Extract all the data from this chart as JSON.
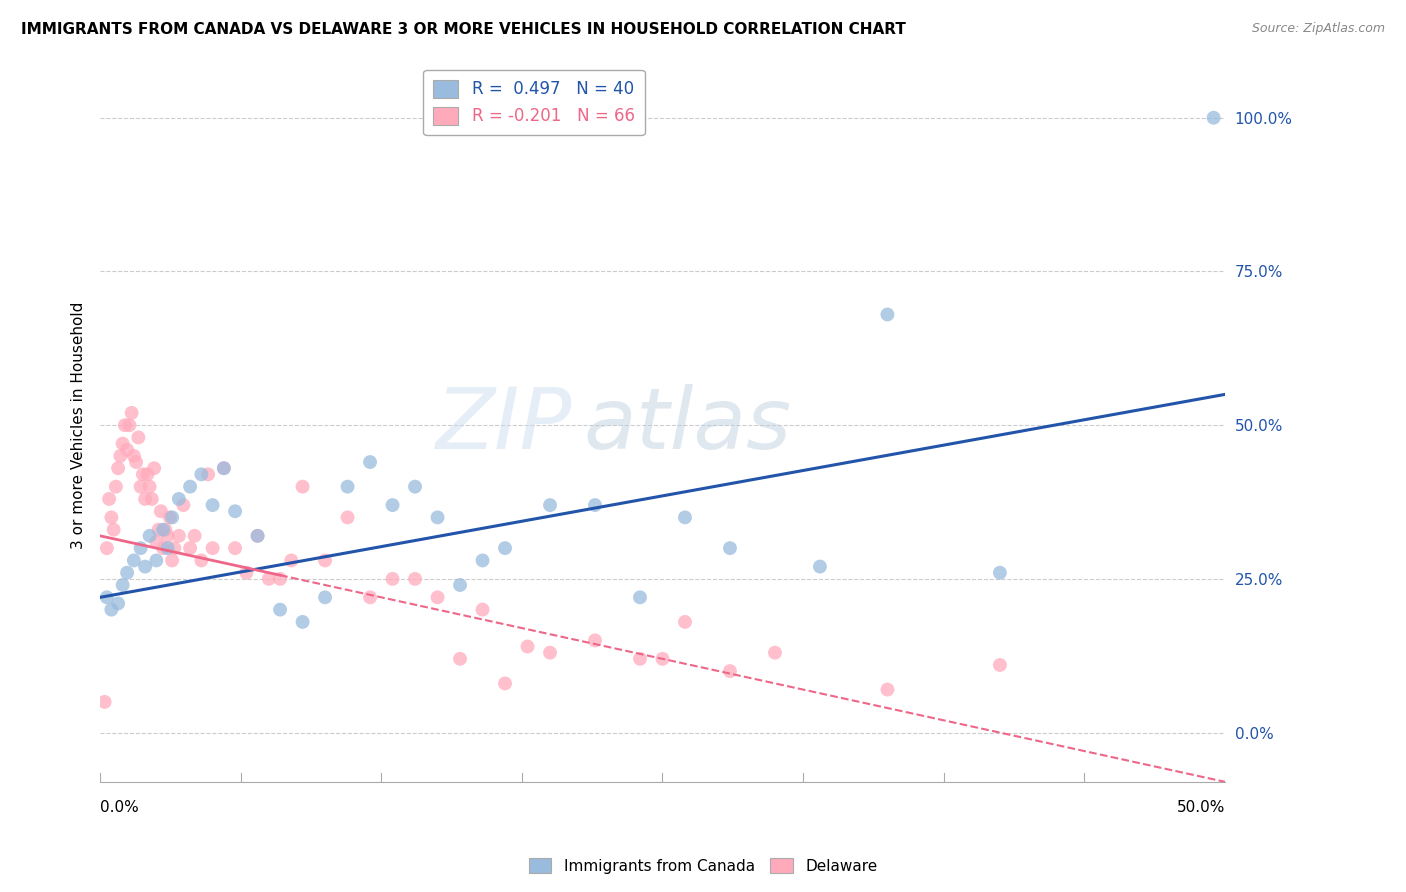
{
  "title": "IMMIGRANTS FROM CANADA VS DELAWARE 3 OR MORE VEHICLES IN HOUSEHOLD CORRELATION CHART",
  "source": "Source: ZipAtlas.com",
  "ylabel": "3 or more Vehicles in Household",
  "ytick_values": [
    0,
    25,
    50,
    75,
    100
  ],
  "xlim": [
    0,
    50
  ],
  "ylim": [
    -8,
    108
  ],
  "color_canada": "#99BBDD",
  "color_delaware": "#FFAABB",
  "trendline_canada_color": "#2255AA",
  "trendline_delaware_color": "#EE6688",
  "watermark_zip": "ZIP",
  "watermark_atlas": "atlas",
  "canada_scatter_x": [
    0.3,
    0.5,
    0.8,
    1.0,
    1.2,
    1.5,
    1.8,
    2.0,
    2.2,
    2.5,
    2.8,
    3.0,
    3.2,
    3.5,
    4.0,
    4.5,
    5.0,
    5.5,
    6.0,
    7.0,
    8.0,
    9.0,
    10.0,
    11.0,
    12.0,
    13.0,
    14.0,
    15.0,
    16.0,
    17.0,
    18.0,
    20.0,
    22.0,
    24.0,
    26.0,
    28.0,
    32.0,
    35.0,
    40.0,
    49.5
  ],
  "canada_scatter_y": [
    22,
    20,
    21,
    24,
    26,
    28,
    30,
    27,
    32,
    28,
    33,
    30,
    35,
    38,
    40,
    42,
    37,
    43,
    36,
    32,
    20,
    18,
    22,
    40,
    44,
    37,
    40,
    35,
    24,
    28,
    30,
    37,
    37,
    22,
    35,
    30,
    27,
    68,
    26,
    100
  ],
  "delaware_scatter_x": [
    0.2,
    0.3,
    0.4,
    0.5,
    0.6,
    0.7,
    0.8,
    0.9,
    1.0,
    1.1,
    1.2,
    1.3,
    1.4,
    1.5,
    1.6,
    1.7,
    1.8,
    1.9,
    2.0,
    2.1,
    2.2,
    2.3,
    2.4,
    2.5,
    2.6,
    2.7,
    2.8,
    2.9,
    3.0,
    3.1,
    3.2,
    3.3,
    3.5,
    3.7,
    4.0,
    4.2,
    4.5,
    4.8,
    5.0,
    5.5,
    6.0,
    6.5,
    7.0,
    7.5,
    8.0,
    8.5,
    9.0,
    10.0,
    11.0,
    12.0,
    13.0,
    14.0,
    15.0,
    16.0,
    17.0,
    18.0,
    19.0,
    20.0,
    22.0,
    24.0,
    25.0,
    26.0,
    28.0,
    30.0,
    35.0,
    40.0
  ],
  "delaware_scatter_y": [
    5,
    30,
    38,
    35,
    33,
    40,
    43,
    45,
    47,
    50,
    46,
    50,
    52,
    45,
    44,
    48,
    40,
    42,
    38,
    42,
    40,
    38,
    43,
    31,
    33,
    36,
    30,
    33,
    32,
    35,
    28,
    30,
    32,
    37,
    30,
    32,
    28,
    42,
    30,
    43,
    30,
    26,
    32,
    25,
    25,
    28,
    40,
    28,
    35,
    22,
    25,
    25,
    22,
    12,
    20,
    8,
    14,
    13,
    15,
    12,
    12,
    18,
    10,
    13,
    7,
    11
  ],
  "trendline_canada_x0": 0,
  "trendline_canada_x1": 50,
  "trendline_canada_y0": 22,
  "trendline_canada_y1": 55,
  "trendline_delaware_x0": 0,
  "trendline_delaware_x1": 50,
  "trendline_delaware_y0": 32,
  "trendline_delaware_y1": -8,
  "trendline_delaware_solid_x1": 8
}
